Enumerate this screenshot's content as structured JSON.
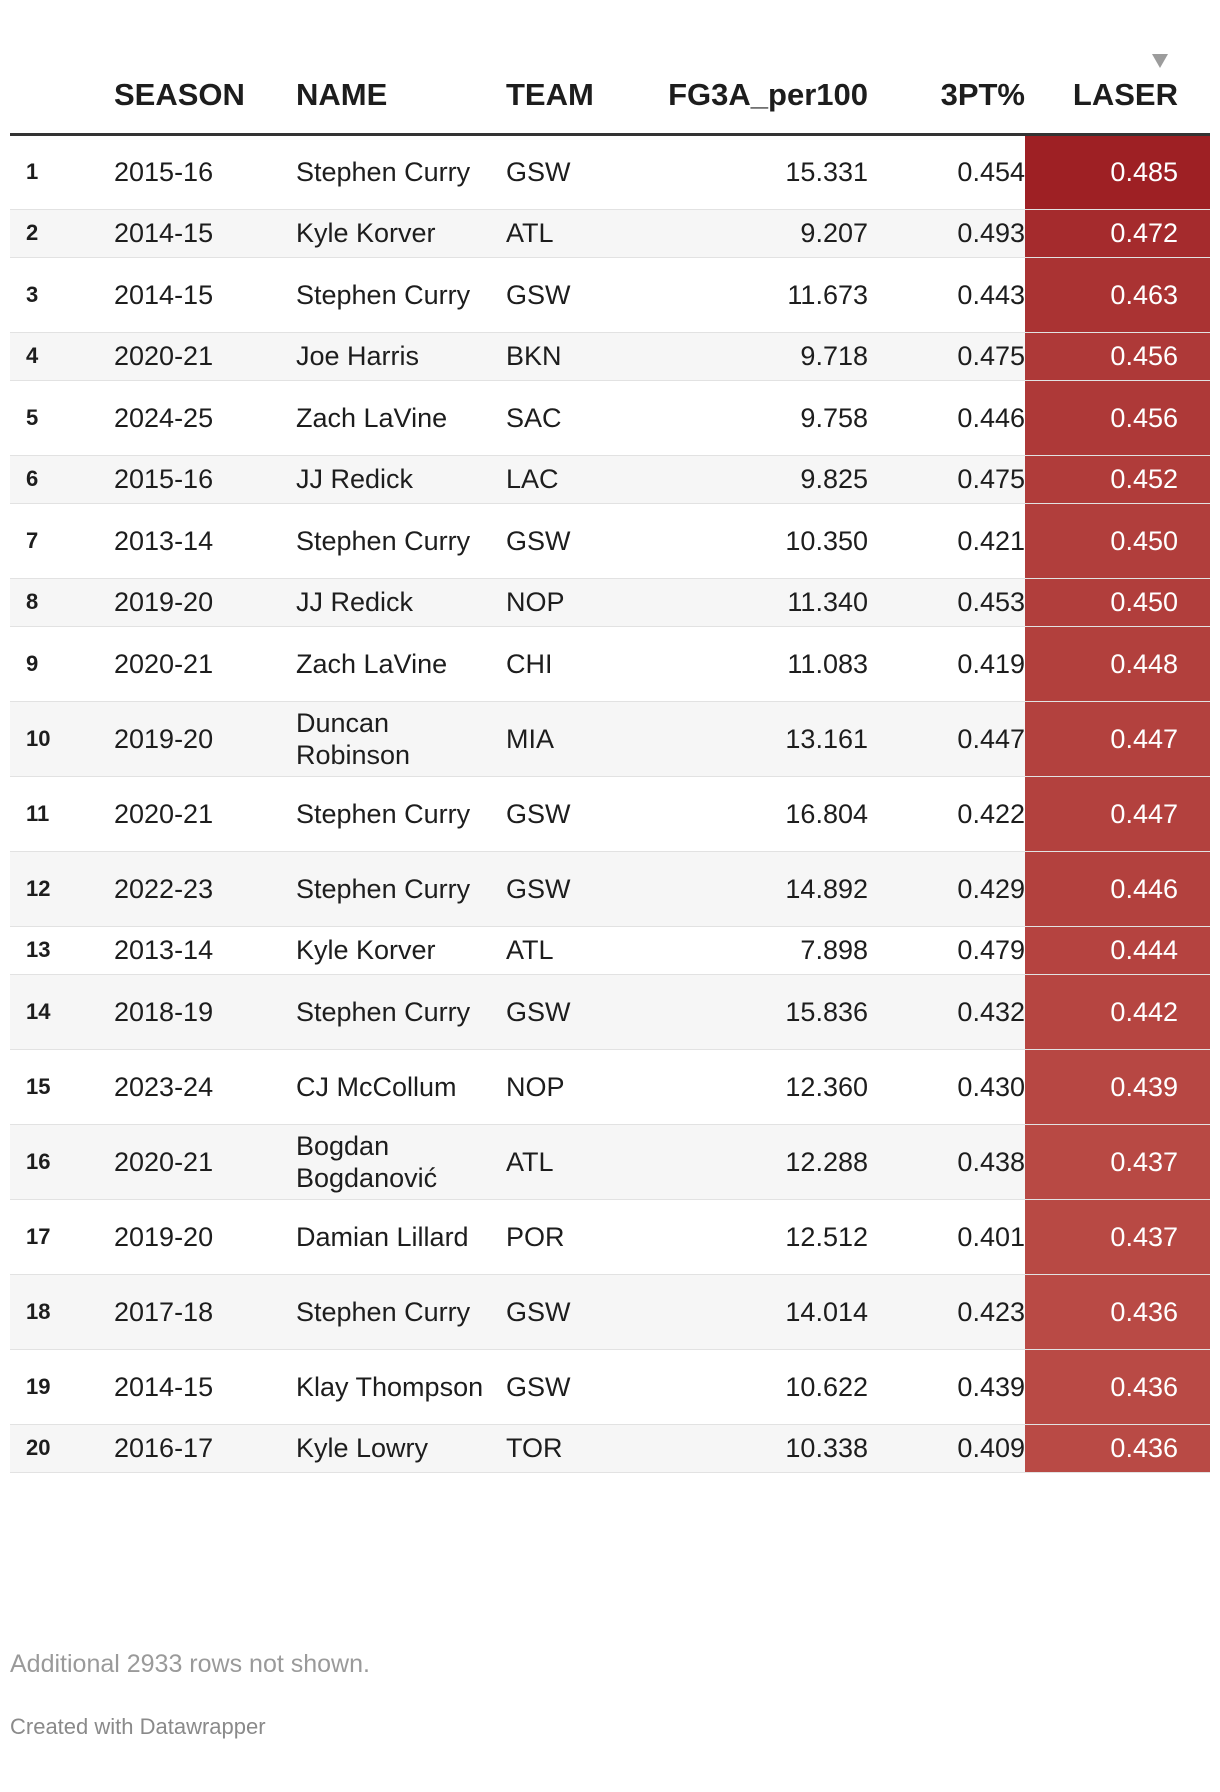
{
  "chart_data": {
    "type": "table",
    "sort_column": "LASER",
    "sort_direction": "descending",
    "columns": [
      "",
      "SEASON",
      "NAME",
      "TEAM",
      "FG3A_per100",
      "3PT%",
      "LASER"
    ],
    "color_scale": {
      "column": "LASER",
      "low_color": "#b94a45",
      "high_color": "#9e2024",
      "min": 0.436,
      "max": 0.485
    },
    "rows": [
      {
        "rank": "1",
        "season": "2015-16",
        "name": "Stephen Curry",
        "team": "GSW",
        "fg3a": "15.331",
        "pct": "0.454",
        "laser": "0.485",
        "laser_value": 0.485
      },
      {
        "rank": "2",
        "season": "2014-15",
        "name": "Kyle Korver",
        "team": "ATL",
        "fg3a": "9.207",
        "pct": "0.493",
        "laser": "0.472",
        "laser_value": 0.472
      },
      {
        "rank": "3",
        "season": "2014-15",
        "name": "Stephen Curry",
        "team": "GSW",
        "fg3a": "11.673",
        "pct": "0.443",
        "laser": "0.463",
        "laser_value": 0.463
      },
      {
        "rank": "4",
        "season": "2020-21",
        "name": "Joe Harris",
        "team": "BKN",
        "fg3a": "9.718",
        "pct": "0.475",
        "laser": "0.456",
        "laser_value": 0.456
      },
      {
        "rank": "5",
        "season": "2024-25",
        "name": "Zach LaVine",
        "team": "SAC",
        "fg3a": "9.758",
        "pct": "0.446",
        "laser": "0.456",
        "laser_value": 0.456
      },
      {
        "rank": "6",
        "season": "2015-16",
        "name": "JJ Redick",
        "team": "LAC",
        "fg3a": "9.825",
        "pct": "0.475",
        "laser": "0.452",
        "laser_value": 0.452
      },
      {
        "rank": "7",
        "season": "2013-14",
        "name": "Stephen Curry",
        "team": "GSW",
        "fg3a": "10.350",
        "pct": "0.421",
        "laser": "0.450",
        "laser_value": 0.45
      },
      {
        "rank": "8",
        "season": "2019-20",
        "name": "JJ Redick",
        "team": "NOP",
        "fg3a": "11.340",
        "pct": "0.453",
        "laser": "0.450",
        "laser_value": 0.45
      },
      {
        "rank": "9",
        "season": "2020-21",
        "name": "Zach LaVine",
        "team": "CHI",
        "fg3a": "11.083",
        "pct": "0.419",
        "laser": "0.448",
        "laser_value": 0.448
      },
      {
        "rank": "10",
        "season": "2019-20",
        "name": "Duncan Robinson",
        "team": "MIA",
        "fg3a": "13.161",
        "pct": "0.447",
        "laser": "0.447",
        "laser_value": 0.447
      },
      {
        "rank": "11",
        "season": "2020-21",
        "name": "Stephen Curry",
        "team": "GSW",
        "fg3a": "16.804",
        "pct": "0.422",
        "laser": "0.447",
        "laser_value": 0.447
      },
      {
        "rank": "12",
        "season": "2022-23",
        "name": "Stephen Curry",
        "team": "GSW",
        "fg3a": "14.892",
        "pct": "0.429",
        "laser": "0.446",
        "laser_value": 0.446
      },
      {
        "rank": "13",
        "season": "2013-14",
        "name": "Kyle Korver",
        "team": "ATL",
        "fg3a": "7.898",
        "pct": "0.479",
        "laser": "0.444",
        "laser_value": 0.444
      },
      {
        "rank": "14",
        "season": "2018-19",
        "name": "Stephen Curry",
        "team": "GSW",
        "fg3a": "15.836",
        "pct": "0.432",
        "laser": "0.442",
        "laser_value": 0.442
      },
      {
        "rank": "15",
        "season": "2023-24",
        "name": "CJ McCollum",
        "team": "NOP",
        "fg3a": "12.360",
        "pct": "0.430",
        "laser": "0.439",
        "laser_value": 0.439
      },
      {
        "rank": "16",
        "season": "2020-21",
        "name": "Bogdan Bogdanović",
        "team": "ATL",
        "fg3a": "12.288",
        "pct": "0.438",
        "laser": "0.437",
        "laser_value": 0.437
      },
      {
        "rank": "17",
        "season": "2019-20",
        "name": "Damian Lillard",
        "team": "POR",
        "fg3a": "12.512",
        "pct": "0.401",
        "laser": "0.437",
        "laser_value": 0.437
      },
      {
        "rank": "18",
        "season": "2017-18",
        "name": "Stephen Curry",
        "team": "GSW",
        "fg3a": "14.014",
        "pct": "0.423",
        "laser": "0.436",
        "laser_value": 0.436
      },
      {
        "rank": "19",
        "season": "2014-15",
        "name": "Klay Thompson",
        "team": "GSW",
        "fg3a": "10.622",
        "pct": "0.439",
        "laser": "0.436",
        "laser_value": 0.436
      },
      {
        "rank": "20",
        "season": "2016-17",
        "name": "Kyle Lowry",
        "team": "TOR",
        "fg3a": "10.338",
        "pct": "0.409",
        "laser": "0.436",
        "laser_value": 0.436
      }
    ]
  },
  "footer": {
    "note": "Additional 2933 rows not shown.",
    "credit": "Created with Datawrapper"
  }
}
